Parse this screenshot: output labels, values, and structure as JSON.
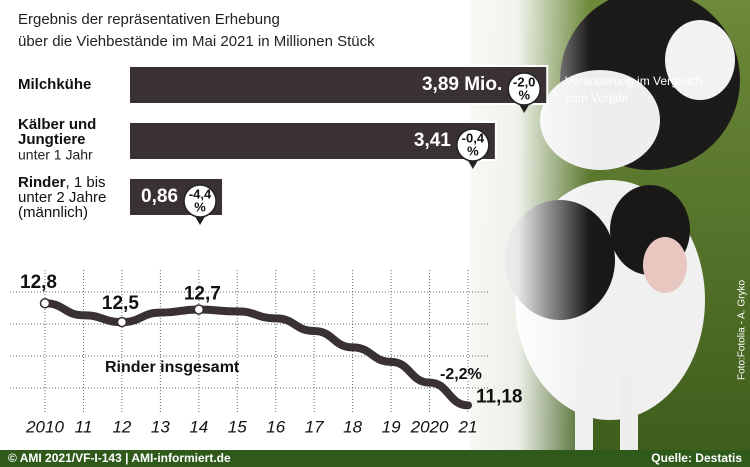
{
  "header": {
    "subtitle_lines": [
      "Ergebnis der repräsentativen Erhebung",
      "über die Viehbestände im Mai 2021 in Millionen Stück"
    ]
  },
  "chart_data": [
    {
      "type": "bar",
      "orientation": "horizontal",
      "categories": [
        "Milchkühe",
        "Kälber und Jungtiere",
        "Rinder"
      ],
      "category_notes": [
        null,
        "unter 1 Jahr",
        ", 1 bis unter 2 Jahre (männlich)"
      ],
      "values": [
        3.89,
        3.41,
        0.86
      ],
      "value_labels": [
        "3,89 Mio.",
        "3,41",
        "0,86"
      ],
      "changes": [
        -2.0,
        -0.4,
        -4.4
      ],
      "change_labels": [
        "-2,0",
        "-0,4",
        "-4,4"
      ],
      "change_unit": "%",
      "change_note": "Veränderung im Vergleich zum Vorjahr",
      "color": "#3a3133",
      "xlim": [
        0,
        4
      ]
    },
    {
      "type": "line",
      "title": "Rinder insgesamt",
      "categories": [
        "2010",
        "11",
        "12",
        "13",
        "14",
        "15",
        "16",
        "17",
        "18",
        "19",
        "2020",
        "21"
      ],
      "values": [
        12.8,
        12.61,
        12.5,
        12.65,
        12.7,
        12.67,
        12.56,
        12.36,
        12.1,
        11.87,
        11.54,
        11.18
      ],
      "value_labels": [
        "12,8",
        null,
        "12,5",
        null,
        "12,7",
        null,
        null,
        null,
        null,
        null,
        null,
        "11,18"
      ],
      "annotation": "-2,2%",
      "color": "#3a3133",
      "ylim": [
        10.9,
        13.2
      ],
      "grid": true
    }
  ],
  "photo_credit": "Foto:Fotolia - A. Gryko",
  "footer": {
    "left": "© AMI 2021/VF-I-143 | AMI-informiert.de",
    "right": "Quelle: Destatis"
  }
}
